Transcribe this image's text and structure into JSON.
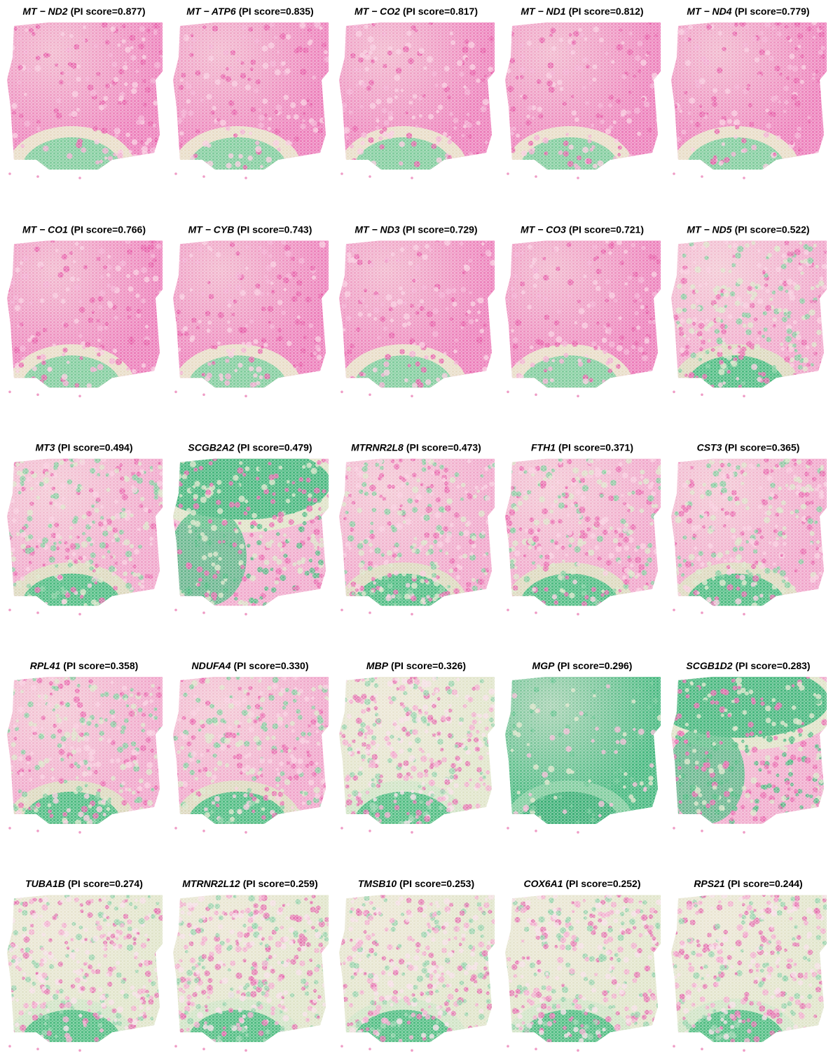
{
  "panels": [
    {
      "gene": "MT − ND2",
      "label": "(PI score=0.877)"
    },
    {
      "gene": "MT − ATP6",
      "label": "(PI score=0.835)"
    },
    {
      "gene": "MT − CO2",
      "label": "(PI score=0.817)"
    },
    {
      "gene": "MT − ND1",
      "label": "(PI score=0.812)"
    },
    {
      "gene": "MT − ND4",
      "label": "(PI score=0.779)"
    },
    {
      "gene": "MT − CO1",
      "label": "(PI score=0.766)"
    },
    {
      "gene": "MT − CYB",
      "label": "(PI score=0.743)"
    },
    {
      "gene": "MT − ND3",
      "label": "(PI score=0.729)"
    },
    {
      "gene": "MT − CO3",
      "label": "(PI score=0.721)"
    },
    {
      "gene": "MT − ND5",
      "label": "(PI score=0.522)"
    },
    {
      "gene": "MT3",
      "label": "(PI score=0.494)"
    },
    {
      "gene": "SCGB2A2",
      "label": "(PI score=0.479)"
    },
    {
      "gene": "MTRNR2L8",
      "label": "(PI score=0.473)"
    },
    {
      "gene": "FTH1",
      "label": "(PI score=0.371)"
    },
    {
      "gene": "CST3",
      "label": "(PI score=0.365)"
    },
    {
      "gene": "RPL41",
      "label": "(PI score=0.358)"
    },
    {
      "gene": "NDUFA4",
      "label": "(PI score=0.330)"
    },
    {
      "gene": "MBP",
      "label": "(PI score=0.326)"
    },
    {
      "gene": "MGP",
      "label": "(PI score=0.296)"
    },
    {
      "gene": "SCGB1D2",
      "label": "(PI score=0.283)"
    },
    {
      "gene": "TUBA1B",
      "label": "(PI score=0.274)"
    },
    {
      "gene": "MTRNR2L12",
      "label": "(PI score=0.259)"
    },
    {
      "gene": "TMSB10",
      "label": "(PI score=0.253)"
    },
    {
      "gene": "COX6A1",
      "label": "(PI score=0.252)"
    },
    {
      "gene": "RPS21",
      "label": "(PI score=0.244)"
    }
  ]
}
